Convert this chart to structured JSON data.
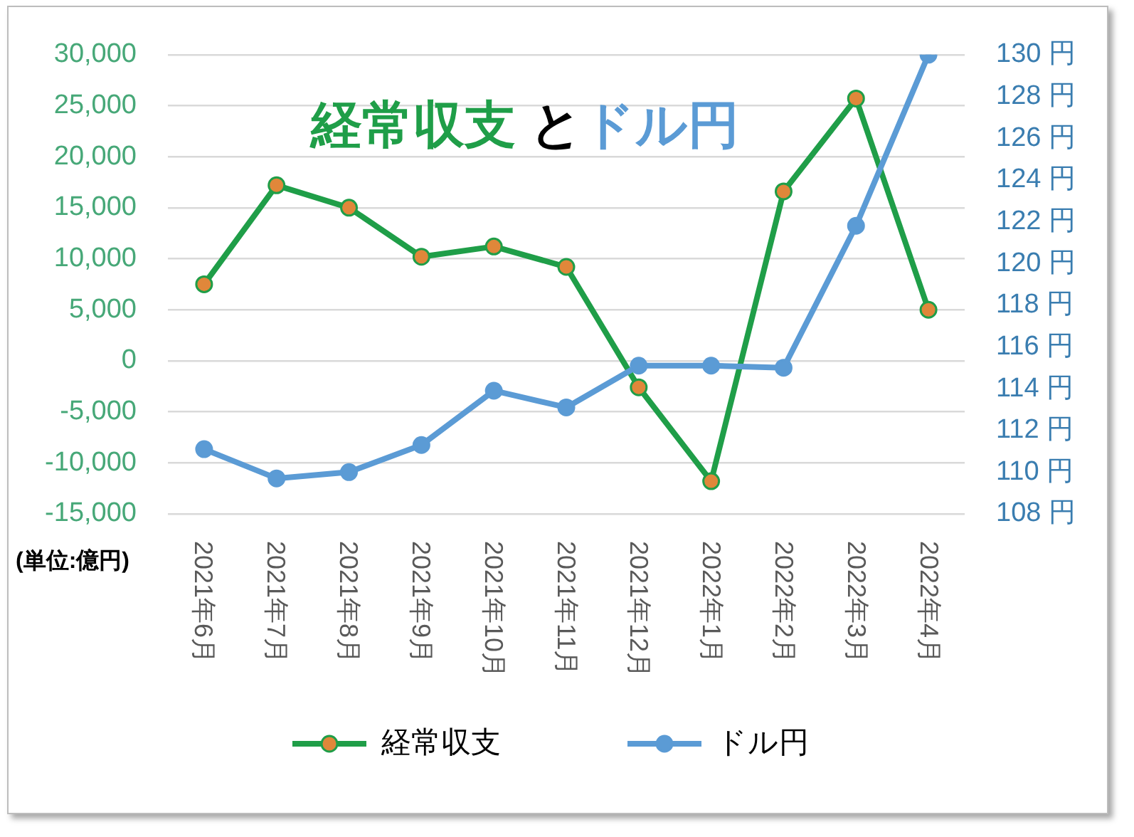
{
  "chart_data": {
    "type": "line",
    "title": "経常収支 とドル円",
    "categories": [
      "2021年6月",
      "2021年7月",
      "2021年8月",
      "2021年9月",
      "2021年10月",
      "2021年11月",
      "2021年12月",
      "2022年1月",
      "2022年2月",
      "2022年3月",
      "2022年4月"
    ],
    "series": [
      {
        "name": "経常収支",
        "color": "#1f9e48",
        "colors": [
          "#e0873a",
          "#e0873a",
          "#e0873a",
          "#e0873a",
          "#e0873a",
          "#e0873a",
          "#e0873a",
          "#e0873a",
          "#e0873a",
          "#e0873a",
          "#e0873a"
        ],
        "values": [
          7500,
          17200,
          15000,
          10200,
          11200,
          9200,
          -2600,
          -11800,
          16600,
          25700,
          5000
        ]
      },
      {
        "name": "ドル円",
        "color": "#5b9bd5",
        "axis": "y2",
        "values": [
          111.1,
          109.7,
          110.0,
          111.3,
          113.9,
          113.1,
          115.1,
          115.1,
          115.0,
          121.8,
          130.0
        ]
      }
    ],
    "ylim": [
      -15000,
      30000
    ],
    "yticks": [
      {
        "value": -15000,
        "label": "-15,000"
      },
      {
        "value": -10000,
        "label": "-10,000"
      },
      {
        "value": -5000,
        "label": "-5,000"
      },
      0,
      {
        "value": 5000,
        "label": "5,000"
      },
      {
        "value": 10000,
        "label": "10,000"
      },
      {
        "value": 15000,
        "label": "15,000"
      },
      {
        "value": 20000,
        "label": "20,000"
      },
      {
        "value": 25000,
        "label": "25,000"
      },
      {
        "value": 30000,
        "label": "30,000"
      }
    ],
    "y2lim": [
      108,
      130
    ],
    "y2ticks": [
      {
        "value": 108,
        "label": "108 円"
      },
      {
        "value": 110,
        "label": "110 円"
      },
      {
        "value": 112,
        "label": "112 円"
      },
      {
        "value": 114,
        "label": "114 円"
      },
      {
        "value": 116,
        "label": "116 円"
      },
      {
        "value": 118,
        "label": "118 円"
      },
      {
        "value": 120,
        "label": "120 円"
      },
      {
        "value": 122,
        "label": "122 円"
      },
      {
        "value": 124,
        "label": "124 円"
      },
      {
        "value": 126,
        "label": "126 円"
      },
      {
        "value": 128,
        "label": "128 円"
      },
      {
        "value": 130,
        "label": "130 円"
      }
    ],
    "grid": "y",
    "legend": "bottom",
    "marker": "circle",
    "annotations": [
      "(単位:億円)"
    ]
  }
}
